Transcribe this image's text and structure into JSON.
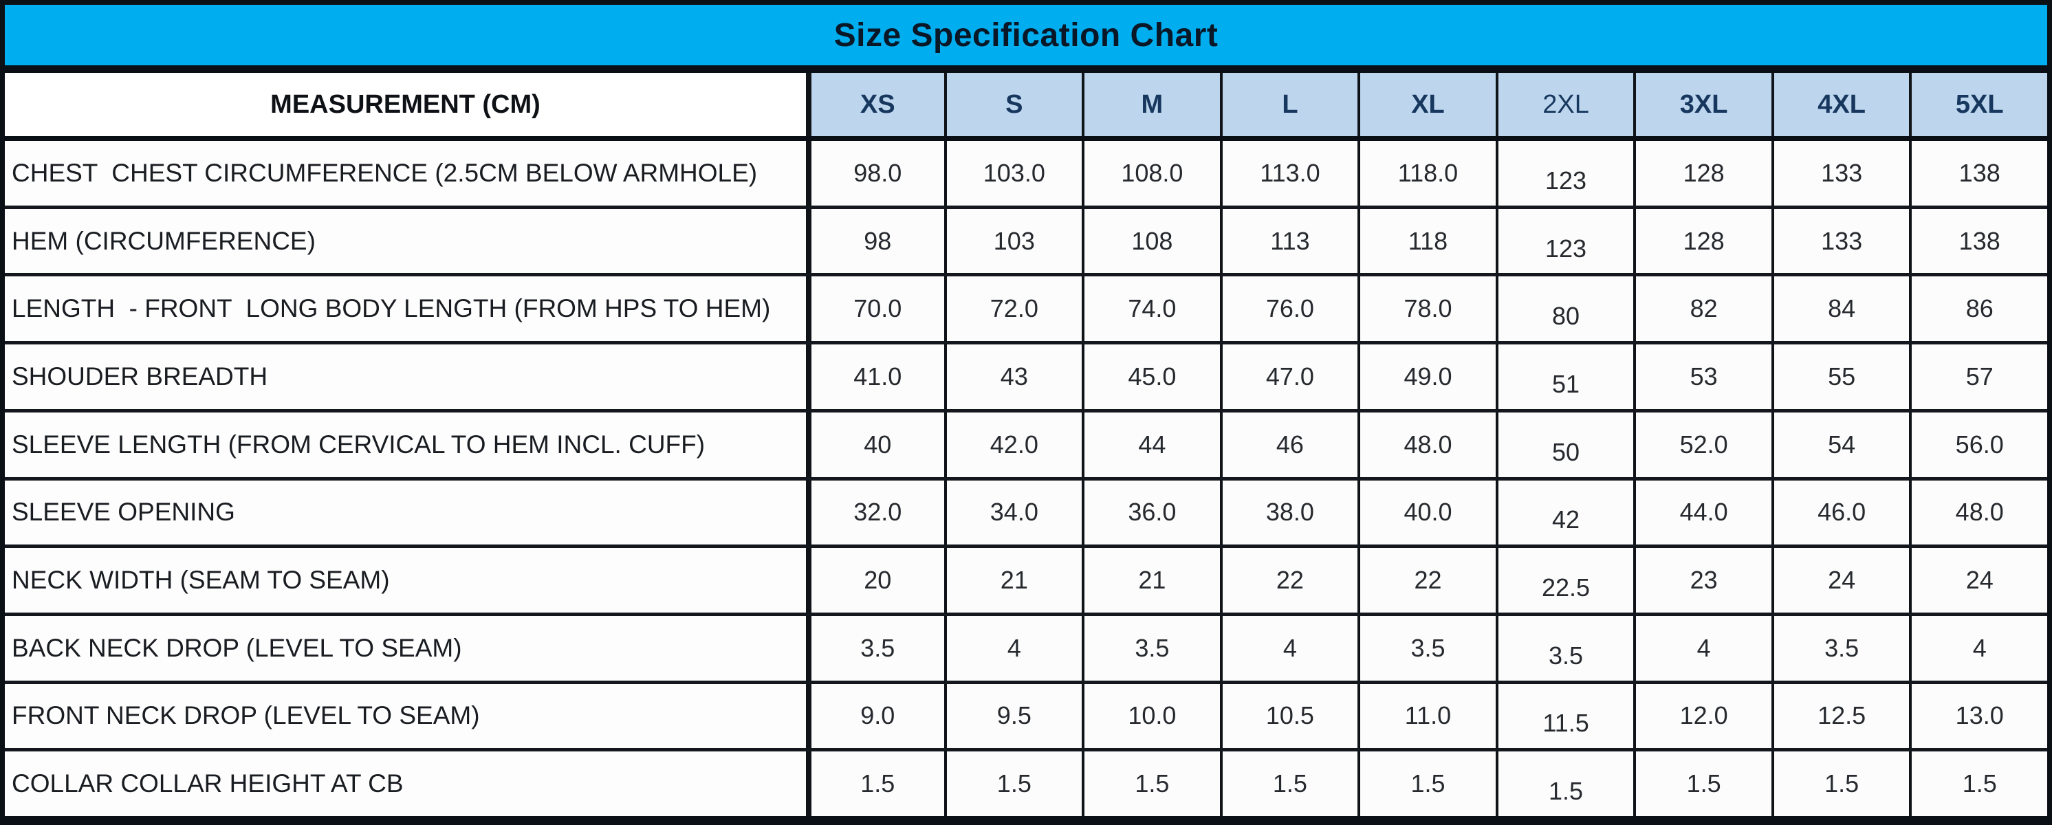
{
  "title": "Size Specification Chart",
  "header": {
    "measurement_label": "MEASUREMENT (CM)",
    "sizes": [
      "XS",
      "S",
      "M",
      "L",
      "XL",
      "2XL",
      "3XL",
      "4XL",
      "5XL"
    ]
  },
  "rows": [
    {
      "label": "CHEST  CHEST CIRCUMFERENCE (2.5CM BELOW ARMHOLE)",
      "values": [
        "98.0",
        "103.0",
        "108.0",
        "113.0",
        "118.0",
        "123",
        "128",
        "133",
        "138"
      ]
    },
    {
      "label": "HEM (CIRCUMFERENCE)",
      "values": [
        "98",
        "103",
        "108",
        "113",
        "118",
        "123",
        "128",
        "133",
        "138"
      ]
    },
    {
      "label": "LENGTH  - FRONT  LONG BODY LENGTH (FROM HPS TO HEM)",
      "values": [
        "70.0",
        "72.0",
        "74.0",
        "76.0",
        "78.0",
        "80",
        "82",
        "84",
        "86"
      ]
    },
    {
      "label": "SHOUDER BREADTH",
      "values": [
        "41.0",
        "43",
        "45.0",
        "47.0",
        "49.0",
        "51",
        "53",
        "55",
        "57"
      ]
    },
    {
      "label": "SLEEVE LENGTH (FROM CERVICAL TO HEM INCL. CUFF)",
      "values": [
        "40",
        "42.0",
        "44",
        "46",
        "48.0",
        "50",
        "52.0",
        "54",
        "56.0"
      ]
    },
    {
      "label": "SLEEVE OPENING",
      "values": [
        "32.0",
        "34.0",
        "36.0",
        "38.0",
        "40.0",
        "42",
        "44.0",
        "46.0",
        "48.0"
      ]
    },
    {
      "label": "NECK WIDTH (SEAM TO SEAM)",
      "values": [
        "20",
        "21",
        "21",
        "22",
        "22",
        "22.5",
        "23",
        "24",
        "24"
      ]
    },
    {
      "label": "BACK NECK DROP (LEVEL TO SEAM)",
      "values": [
        "3.5",
        "4",
        "3.5",
        "4",
        "3.5",
        "3.5",
        "4",
        "3.5",
        "4"
      ]
    },
    {
      "label": "FRONT NECK DROP (LEVEL TO SEAM)",
      "values": [
        "9.0",
        "9.5",
        "10.0",
        "10.5",
        "11.0",
        "11.5",
        "12.0",
        "12.5",
        "13.0"
      ]
    },
    {
      "label": "COLLAR COLLAR HEIGHT AT CB",
      "values": [
        "1.5",
        "1.5",
        "1.5",
        "1.5",
        "1.5",
        "1.5",
        "1.5",
        "1.5",
        "1.5"
      ]
    }
  ],
  "colors": {
    "title_bg": "#00aeef",
    "title_text": "#0a1726",
    "header_bg": "#bdd6ee",
    "header_text": "#17375e",
    "border": "#0b0f16"
  }
}
